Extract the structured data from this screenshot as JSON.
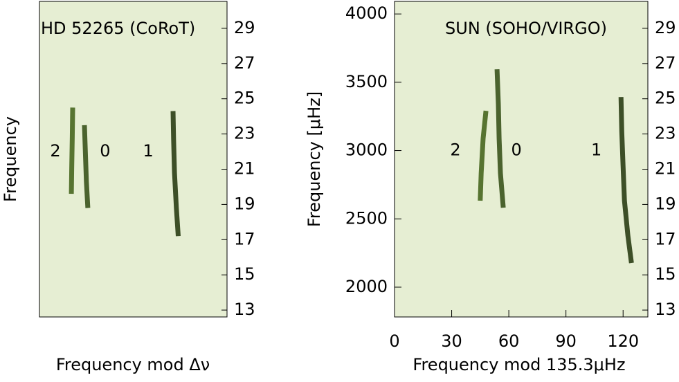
{
  "chart_data": [
    {
      "type": "echelle",
      "title": "HD 52265 (CoRoT)",
      "y_label": "Frequency",
      "x_label": "Frequency mod Δν",
      "background": "#e6eed3",
      "xlim": [
        0,
        1
      ],
      "y2lim": [
        12.61,
        30.53
      ],
      "y2ticks": [
        13,
        15,
        17,
        19,
        21,
        23,
        25,
        27,
        29
      ],
      "series": [
        {
          "name": "2",
          "color": "#3d5e14",
          "axis": "y2",
          "x": [
            0.177,
            0.175,
            0.172,
            0.17
          ],
          "values": [
            24.5,
            22.8,
            21.0,
            19.6
          ]
        },
        {
          "name": "0",
          "color": "#2f4a10",
          "axis": "y2",
          "x": [
            0.24,
            0.245,
            0.25,
            0.258
          ],
          "values": [
            23.5,
            21.9,
            20.3,
            18.8
          ]
        },
        {
          "name": "1",
          "color": "#1f3308",
          "axis": "y2",
          "x": [
            0.712,
            0.715,
            0.72,
            0.73,
            0.74
          ],
          "values": [
            24.3,
            22.7,
            20.8,
            18.8,
            17.2
          ]
        }
      ],
      "annotations": [
        {
          "text": "2",
          "x": 0.085,
          "y": 22
        },
        {
          "text": "0",
          "x": 0.35,
          "y": 22
        },
        {
          "text": "1",
          "x": 0.58,
          "y": 22
        }
      ]
    },
    {
      "type": "echelle",
      "title": "SUN (SOHO/VIRGO)",
      "y_label": "Frequency [μHz]",
      "x_label": "Frequency mod 135.3μHz",
      "background": "#e6eed3",
      "xlim": [
        0,
        133
      ],
      "xticks": [
        0,
        30,
        60,
        90,
        120
      ],
      "ylim": [
        1782,
        4092
      ],
      "yticks": [
        2000,
        2500,
        3000,
        3500,
        4000
      ],
      "y2lim": [
        12.61,
        30.53
      ],
      "y2ticks": [
        13,
        15,
        17,
        19,
        21,
        23,
        25,
        27,
        29
      ],
      "series": [
        {
          "name": "2",
          "color": "#3d5e14",
          "x": [
            48,
            46.5,
            45.5,
            45
          ],
          "values": [
            3291,
            3089,
            2835,
            2633
          ]
        },
        {
          "name": "0",
          "color": "#2f4a10",
          "x": [
            53.8,
            54.5,
            54.9,
            55.6,
            57.1
          ],
          "values": [
            3595,
            3342,
            3089,
            2835,
            2582
          ]
        },
        {
          "name": "1",
          "color": "#1f3308",
          "x": [
            118.9,
            119.3,
            120,
            120.7,
            122.5,
            124.4
          ],
          "values": [
            3392,
            3139,
            2886,
            2633,
            2380,
            2177
          ]
        }
      ],
      "annotations": [
        {
          "text": "2",
          "x": 32,
          "y": 3000
        },
        {
          "text": "0",
          "x": 64,
          "y": 3000
        },
        {
          "text": "1",
          "x": 106,
          "y": 3000
        }
      ]
    }
  ]
}
